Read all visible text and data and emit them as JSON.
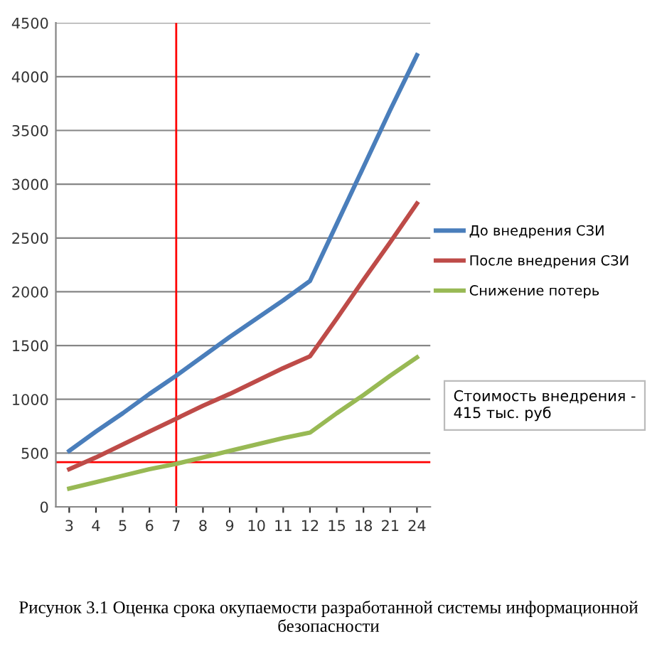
{
  "chart_data": {
    "type": "line",
    "categories": [
      "3",
      "4",
      "5",
      "6",
      "7",
      "8",
      "9",
      "10",
      "11",
      "12",
      "15",
      "18",
      "21",
      "24"
    ],
    "series": [
      {
        "name": "До внедрения СЗИ",
        "color": "#4a7ebb",
        "values": [
          520,
          700,
          870,
          1050,
          1220,
          1400,
          1580,
          1750,
          1920,
          2100,
          2630,
          3160,
          3690,
          4200
        ]
      },
      {
        "name": "После внедрения СЗИ",
        "color": "#be4b48",
        "values": [
          350,
          460,
          580,
          700,
          820,
          940,
          1050,
          1170,
          1290,
          1400,
          1750,
          2110,
          2460,
          2820
        ]
      },
      {
        "name": "Снижение потерь",
        "color": "#98b954",
        "values": [
          170,
          230,
          290,
          350,
          400,
          460,
          520,
          580,
          640,
          690,
          870,
          1040,
          1220,
          1390
        ]
      }
    ],
    "ylim": [
      0,
      4500
    ],
    "yticks": [
      0,
      500,
      1000,
      1500,
      2000,
      2500,
      3000,
      3500,
      4000,
      4500
    ],
    "grid": "y",
    "legend": "right",
    "marker": "none",
    "line_style": "solid",
    "ref_lines": [
      {
        "axis": "y",
        "value": 415,
        "color": "#ff0000"
      },
      {
        "axis": "x",
        "value": "7",
        "color": "#ff0000"
      }
    ],
    "annotations": [
      "Стоимость внедрения - 415 тыс. руб",
      "Рисунок 3.1 Оценка срока окупаемости разработанной системы информационной безопасности"
    ]
  }
}
